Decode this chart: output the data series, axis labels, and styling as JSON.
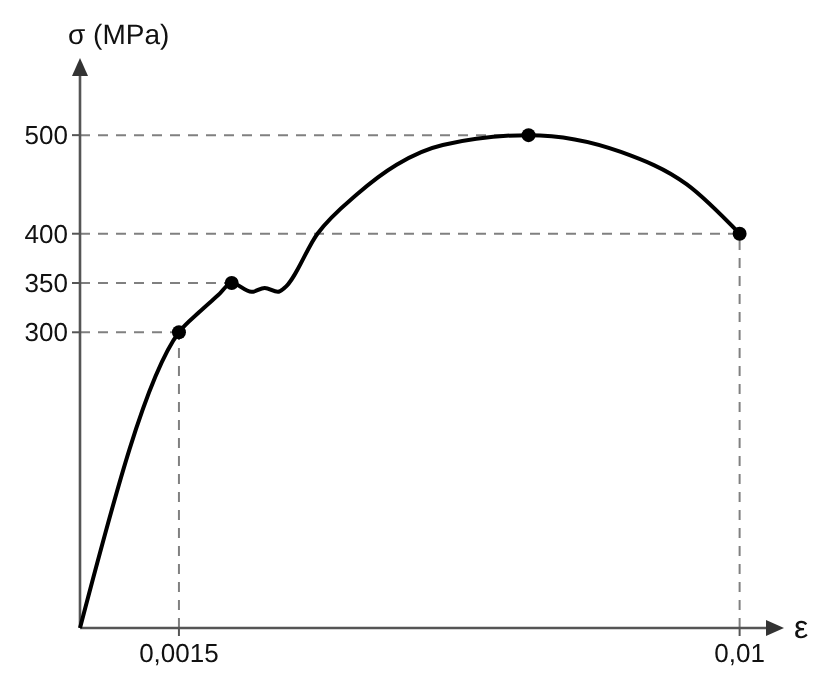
{
  "chart_data": {
    "type": "line",
    "xlabel": "ε",
    "ylabel": "σ (MPa)",
    "xlim": [
      0,
      0.0104
    ],
    "ylim": [
      0,
      560
    ],
    "xticks": [
      {
        "value": 0.0015,
        "label": "0,0015"
      },
      {
        "value": 0.01,
        "label": "0,01"
      }
    ],
    "yticks": [
      300,
      350,
      400,
      500
    ],
    "grid": false,
    "tick_labels": true,
    "series": [
      {
        "color": "#000000",
        "marker": "none",
        "x": [
          0,
          0.0015,
          0.0018,
          0.0021,
          0.0023,
          0.0026,
          0.0028,
          0.003,
          0.0031,
          0.0036,
          0.0042,
          0.0048,
          0.0055,
          0.0068,
          0.0082,
          0.0092,
          0.01
        ],
        "values": [
          0,
          300,
          320,
          338,
          350,
          341,
          345,
          341,
          345,
          400,
          440,
          470,
          490,
          500,
          483,
          450,
          400
        ]
      },
      {
        "type": "scatter",
        "color": "#000000",
        "marker": "circle",
        "x": [
          0.0015,
          0.0023,
          0.0068,
          0.01
        ],
        "values": [
          300,
          350,
          500,
          400
        ]
      }
    ],
    "ref_lines": [
      {
        "axis": "y",
        "value": 300,
        "color": "#808080",
        "line_style": "dashed"
      },
      {
        "axis": "y",
        "value": 350,
        "color": "#808080",
        "line_style": "dashed"
      },
      {
        "axis": "y",
        "value": 400,
        "color": "#808080",
        "line_style": "dashed"
      },
      {
        "axis": "y",
        "value": 500,
        "color": "#808080",
        "line_style": "dashed"
      },
      {
        "axis": "x",
        "value": 0.0015,
        "color": "#808080",
        "line_style": "dashed"
      },
      {
        "axis": "x",
        "value": 0.01,
        "color": "#808080",
        "line_style": "dashed"
      }
    ]
  }
}
